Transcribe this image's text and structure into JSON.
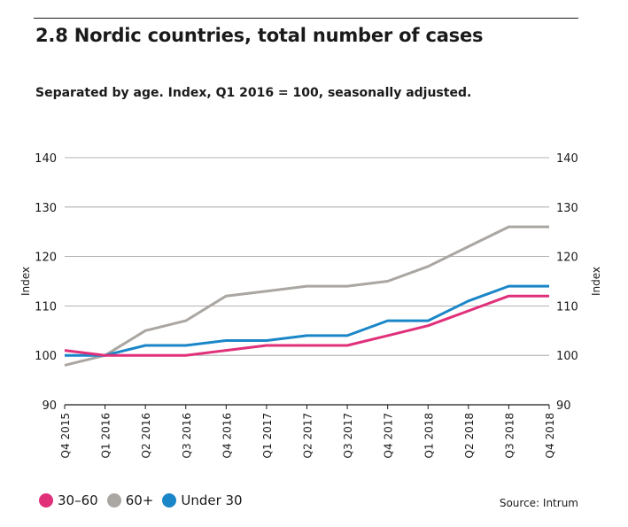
{
  "header": {
    "title": "2.8 Nordic countries, total number of cases",
    "subtitle": "Separated by age. Index, Q1 2016 = 100, seasonally adjusted."
  },
  "source": "Source: Intrum",
  "chart_data": {
    "type": "line",
    "title": "2.8 Nordic countries, total number of cases",
    "subtitle": "Separated by age. Index, Q1 2016 = 100, seasonally adjusted.",
    "ylabel": "Index",
    "ylabel_right": "Index",
    "ylim": [
      90,
      140
    ],
    "yticks": [
      90,
      100,
      110,
      120,
      130,
      140
    ],
    "grid": true,
    "legend_position": "bottom-left",
    "categories": [
      "Q4 2015",
      "Q1 2016",
      "Q2 2016",
      "Q3 2016",
      "Q4 2016",
      "Q1 2017",
      "Q2 2017",
      "Q3 2017",
      "Q4 2017",
      "Q1 2018",
      "Q2 2018",
      "Q3 2018",
      "Q4 2018"
    ],
    "series": [
      {
        "name": "30–60",
        "color": "#e0307a",
        "values": [
          101,
          100,
          100,
          100,
          101,
          102,
          102,
          102,
          104,
          106,
          109,
          112,
          112
        ]
      },
      {
        "name": "60+",
        "color": "#aaa6a1",
        "values": [
          98,
          100,
          105,
          107,
          112,
          113,
          114,
          114,
          115,
          118,
          122,
          126,
          126
        ]
      },
      {
        "name": "Under 30",
        "color": "#1a86c8",
        "values": [
          100,
          100,
          102,
          102,
          103,
          103,
          104,
          104,
          107,
          107,
          111,
          114,
          114
        ]
      }
    ]
  }
}
